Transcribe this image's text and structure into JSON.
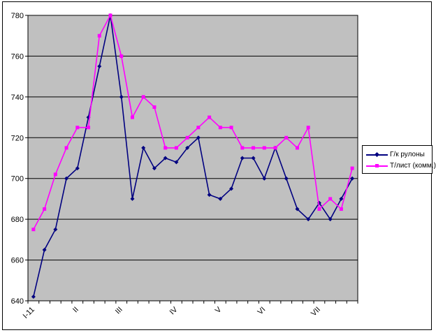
{
  "chart_data": {
    "type": "line",
    "title": "",
    "plot_bg": "#C0C0C0",
    "grid_color": "#000000",
    "grid": true,
    "legend_position": "right",
    "y_axis": {
      "min": 640,
      "max": 780,
      "step": 20
    },
    "y_tick_labels": [
      "640",
      "660",
      "680",
      "700",
      "720",
      "740",
      "760",
      "780"
    ],
    "x_labels": [
      {
        "index": 0,
        "label": "I-11"
      },
      {
        "index": 4,
        "label": "II"
      },
      {
        "index": 8,
        "label": "III"
      },
      {
        "index": 13,
        "label": "IV"
      },
      {
        "index": 17,
        "label": "V"
      },
      {
        "index": 21,
        "label": "VI"
      },
      {
        "index": 26,
        "label": "VII"
      }
    ],
    "series": [
      {
        "name": "Г/к рулоны",
        "color": "#000080",
        "marker": "diamond",
        "values": [
          642,
          665,
          675,
          700,
          705,
          730,
          755,
          780,
          740,
          690,
          715,
          705,
          710,
          708,
          715,
          720,
          692,
          690,
          695,
          710,
          710,
          700,
          715,
          700,
          685,
          680,
          688,
          680,
          690,
          700
        ]
      },
      {
        "name": "Т/лист (комм.)",
        "color": "#FF00FF",
        "marker": "square",
        "values": [
          675,
          685,
          702,
          715,
          725,
          725,
          770,
          780,
          760,
          730,
          740,
          735,
          715,
          715,
          720,
          725,
          730,
          725,
          725,
          715,
          715,
          715,
          715,
          720,
          715,
          725,
          685,
          690,
          685,
          705
        ]
      }
    ]
  }
}
